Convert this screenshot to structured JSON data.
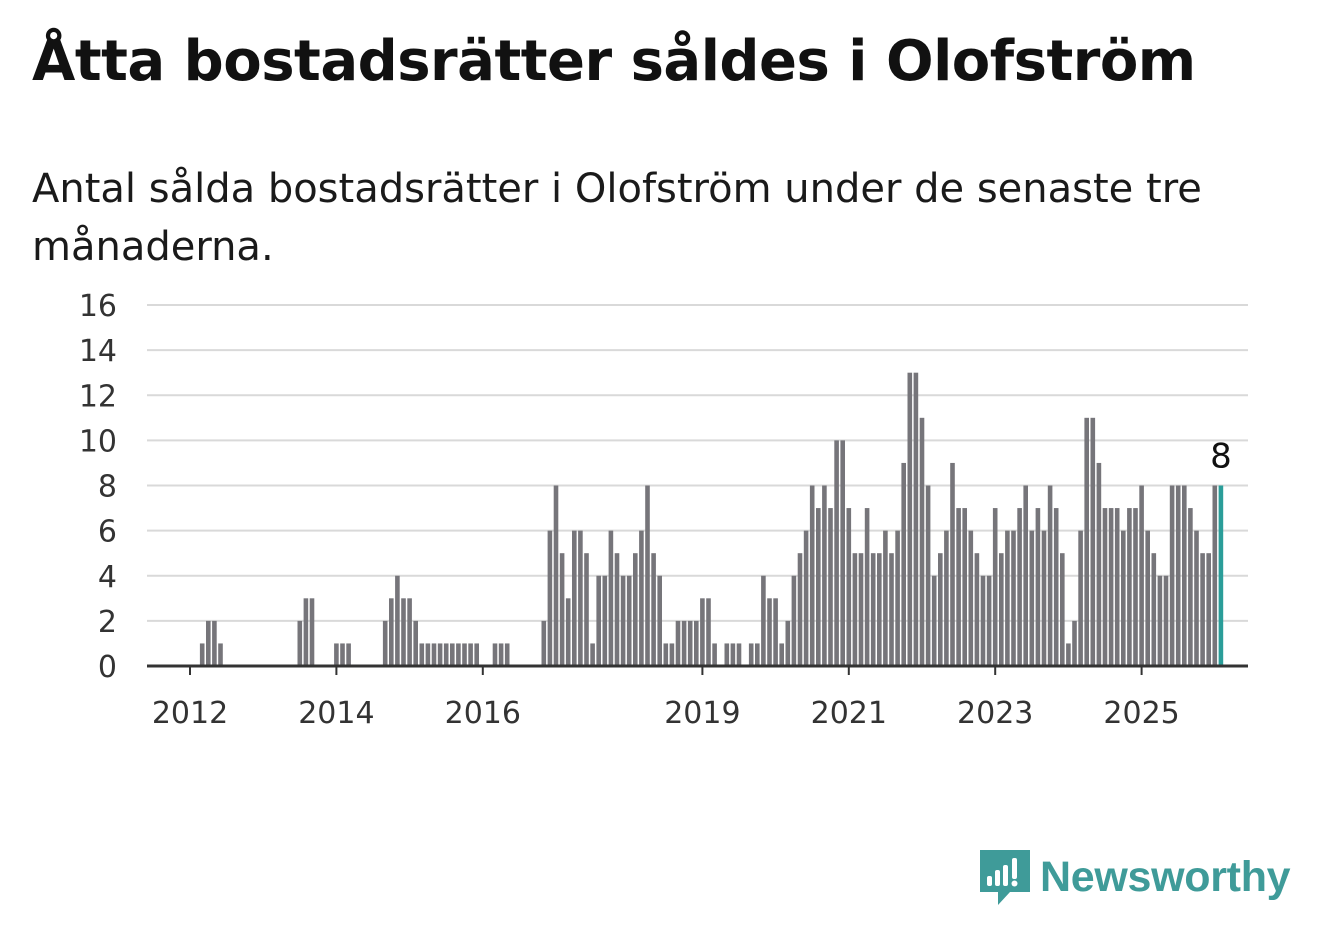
{
  "title": "Åtta bostadsrätter såldes i Olofström",
  "subtitle": "Antal sålda bostadsrätter i Olofström under de senaste tre månaderna.",
  "brand": {
    "name": "Newsworthy",
    "color": "#3f9b99",
    "icon": "newsworthy-chart-bubble-icon"
  },
  "chart_data": {
    "type": "bar",
    "title": "",
    "xlabel": "",
    "ylabel": "",
    "ylim": [
      0,
      16
    ],
    "y_ticks": [
      0,
      2,
      4,
      6,
      8,
      10,
      12,
      14,
      16
    ],
    "x_ticks": [
      {
        "label": "2012",
        "date": "2012-01"
      },
      {
        "label": "2014",
        "date": "2014-01"
      },
      {
        "label": "2016",
        "date": "2016-01"
      },
      {
        "label": "2019",
        "date": "2019-01"
      },
      {
        "label": "2021",
        "date": "2021-01"
      },
      {
        "label": "2023",
        "date": "2023-01"
      },
      {
        "label": "2025",
        "date": "2025-01"
      }
    ],
    "grid": true,
    "bar_color": "#76757a",
    "highlight_color": "#2a9d99",
    "highlight_label": "8",
    "series": [
      {
        "start": "2011-06",
        "interval": "month",
        "values": [
          0,
          0,
          0,
          0,
          0,
          0,
          0,
          0,
          0,
          1,
          2,
          2,
          1,
          0,
          0,
          0,
          0,
          0,
          0,
          0,
          0,
          0,
          0,
          0,
          0,
          2,
          3,
          3,
          0,
          0,
          0,
          1,
          1,
          1,
          0,
          0,
          0,
          0,
          0,
          2,
          3,
          4,
          3,
          3,
          2,
          1,
          1,
          1,
          1,
          1,
          1,
          1,
          1,
          1,
          1,
          0,
          0,
          1,
          1,
          1,
          0,
          0,
          0,
          0,
          0,
          2,
          6,
          8,
          5,
          3,
          6,
          6,
          5,
          1,
          4,
          4,
          6,
          5,
          4,
          4,
          5,
          6,
          8,
          5,
          4,
          1,
          1,
          2,
          2,
          2,
          2,
          3,
          3,
          1,
          0,
          1,
          1,
          1,
          0,
          1,
          1,
          4,
          3,
          3,
          1,
          2,
          4,
          5,
          6,
          8,
          7,
          8,
          7,
          10,
          10,
          7,
          5,
          5,
          7,
          5,
          5,
          6,
          5,
          6,
          9,
          13,
          13,
          11,
          8,
          4,
          5,
          6,
          9,
          7,
          7,
          6,
          5,
          4,
          4,
          7,
          5,
          6,
          6,
          7,
          8,
          6,
          7,
          6,
          8,
          7,
          5,
          1,
          2,
          6,
          11,
          11,
          9,
          7,
          7,
          7,
          6,
          7,
          7,
          8,
          6,
          5,
          4,
          4,
          8,
          8,
          8,
          7,
          6,
          5,
          5,
          8,
          8
        ]
      }
    ]
  }
}
